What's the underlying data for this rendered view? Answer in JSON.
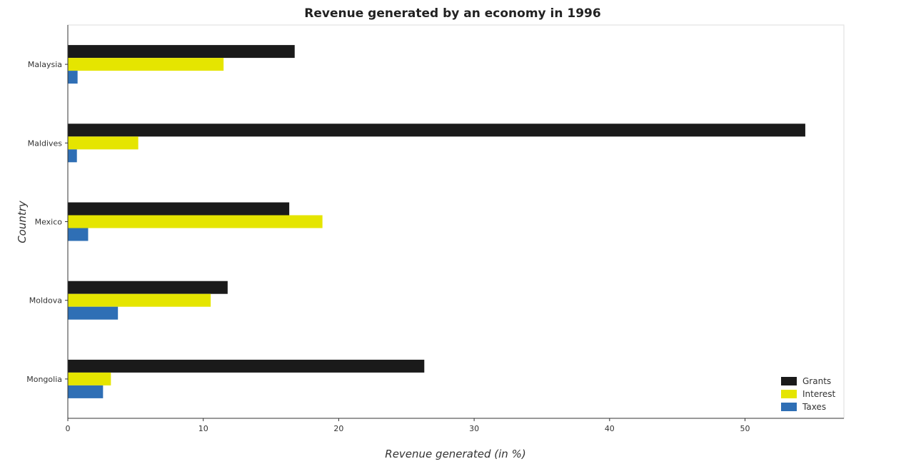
{
  "chart_data": {
    "type": "bar",
    "orientation": "horizontal",
    "title": "Revenue generated by an economy in 1996",
    "xlabel": "Revenue generated (in %)",
    "ylabel": "Country",
    "categories": [
      "Malaysia",
      "Maldives",
      "Mexico",
      "Moldova",
      "Mongolia"
    ],
    "series": [
      {
        "name": "Grants",
        "color": "#1a1a1a",
        "values": [
          16.75,
          54.45,
          16.35,
          11.8,
          26.32
        ]
      },
      {
        "name": "Interest",
        "color": "#e5e500",
        "values": [
          11.5,
          5.2,
          18.8,
          10.55,
          3.18
        ]
      },
      {
        "name": "Taxes",
        "color": "#2f6fb5",
        "values": [
          0.72,
          0.67,
          1.5,
          3.7,
          2.6
        ]
      }
    ],
    "xlim": [
      0,
      57.3
    ],
    "xticks": [
      0,
      10,
      20,
      30,
      40,
      50
    ],
    "grid": false,
    "legend_position": "bottom-right"
  }
}
